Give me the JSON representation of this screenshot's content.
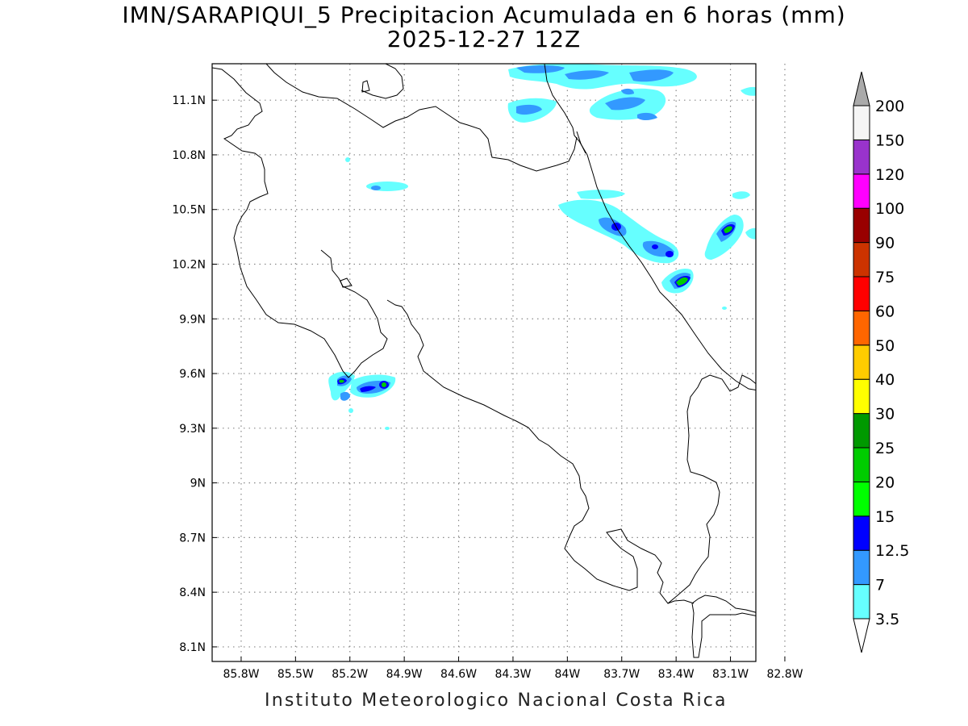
{
  "title_line1": "IMN/SARAPIQUI_5 Precipitacion Acumulada en 6 horas (mm)",
  "title_line2": "2025-12-27 12Z",
  "footer": "Instituto Meteorologico Nacional Costa Rica",
  "map": {
    "lon_labels": [
      "85.8W",
      "85.5W",
      "85.2W",
      "84.9W",
      "84.6W",
      "84.3W",
      "84W",
      "83.7W",
      "83.4W",
      "83.1W",
      "82.8W"
    ],
    "lat_labels": [
      "11.1N",
      "10.8N",
      "10.5N",
      "10.2N",
      "9.9N",
      "9.6N",
      "9.3N",
      "9N",
      "8.7N",
      "8.4N",
      "8.1N"
    ],
    "lon_range": [
      -85.96,
      -82.96
    ],
    "lat_range": [
      8.02,
      11.3
    ]
  },
  "colorbar": {
    "levels": [
      "3.5",
      "7",
      "12.5",
      "15",
      "20",
      "25",
      "30",
      "40",
      "50",
      "60",
      "75",
      "90",
      "100",
      "120",
      "150",
      "200"
    ],
    "colors": [
      "#66ffff",
      "#3399ff",
      "#0000ff",
      "#00ff00",
      "#00cc00",
      "#009900",
      "#ffff00",
      "#ffcc00",
      "#ff6600",
      "#ff0000",
      "#cc3300",
      "#990000",
      "#ff00ff",
      "#9933cc",
      "#f5f5f5",
      "#aaaaaa"
    ]
  },
  "colors": {
    "light_cyan": "#66ffff",
    "mid_blue": "#3399ff",
    "blue": "#0000ff",
    "green": "#00cc00",
    "coast": "#000000",
    "grid": "#888888"
  }
}
